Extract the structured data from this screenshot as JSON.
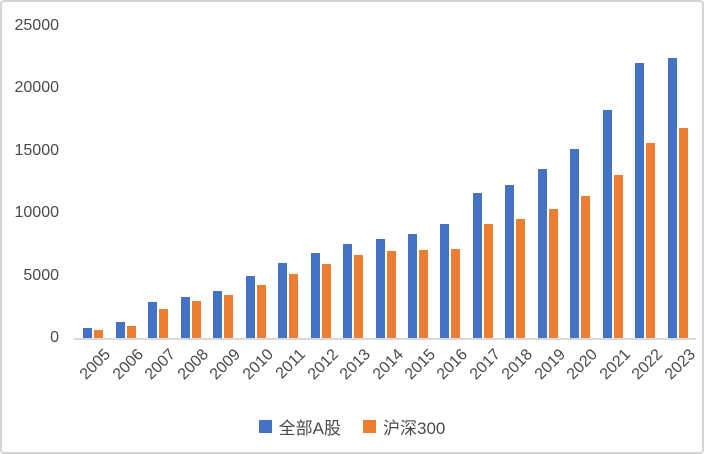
{
  "chart_data": {
    "type": "bar",
    "title": "",
    "categories": [
      "2005",
      "2006",
      "2007",
      "2008",
      "2009",
      "2010",
      "2011",
      "2012",
      "2013",
      "2014",
      "2015",
      "2016",
      "2017",
      "2018",
      "2019",
      "2020",
      "2021",
      "2022",
      "2023"
    ],
    "series": [
      {
        "name": "全部A股",
        "color": "#4472C4",
        "values": [
          800,
          1300,
          2850,
          3300,
          3800,
          5000,
          6000,
          6800,
          7550,
          7950,
          8350,
          9150,
          11650,
          12300,
          13550,
          15150,
          18250,
          22000,
          22400
        ]
      },
      {
        "name": "沪深300",
        "color": "#ED7D31",
        "values": [
          620,
          1000,
          2350,
          3000,
          3450,
          4250,
          5150,
          5900,
          6650,
          6950,
          7050,
          7150,
          9100,
          9500,
          10300,
          11350,
          13100,
          15650,
          16850
        ]
      }
    ],
    "xlabel": "",
    "ylabel": "",
    "ylim": [
      0,
      25000
    ],
    "y_ticks": [
      0,
      5000,
      10000,
      15000,
      20000,
      25000
    ],
    "grid": false,
    "legend_position": "bottom",
    "x_label_rotation_deg": 45,
    "colors": {
      "axis_line": "#d9d9d9",
      "text": "#4a4a4a",
      "background": "#ffffff",
      "frame_border": "#d4d4d4"
    }
  }
}
